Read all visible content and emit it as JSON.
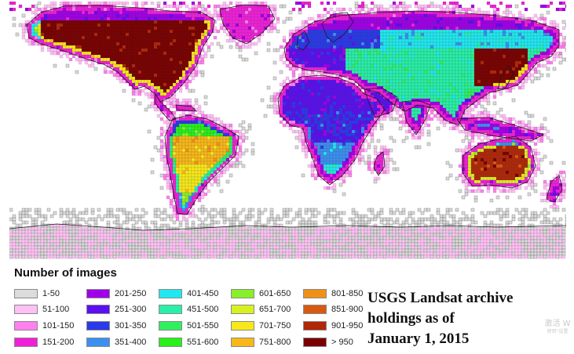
{
  "map": {
    "tile_colors": {
      "ocean": "#ffffff",
      "coast_line": "#1a1a1a",
      "tile_outline": "#6a6a6a"
    }
  },
  "legend": {
    "title": "Number of images",
    "items": [
      {
        "label": "1-50",
        "color": "#dcdcdc"
      },
      {
        "label": "51-100",
        "color": "#ffc0f5"
      },
      {
        "label": "101-150",
        "color": "#ff80ee"
      },
      {
        "label": "151-200",
        "color": "#f020d8"
      },
      {
        "label": "201-250",
        "color": "#a000e8"
      },
      {
        "label": "251-300",
        "color": "#5a10f0"
      },
      {
        "label": "301-350",
        "color": "#2a3ae8"
      },
      {
        "label": "351-400",
        "color": "#3a90f0"
      },
      {
        "label": "401-450",
        "color": "#20e8f0"
      },
      {
        "label": "451-500",
        "color": "#28f0a8"
      },
      {
        "label": "501-550",
        "color": "#30f060"
      },
      {
        "label": "551-600",
        "color": "#28f018"
      },
      {
        "label": "601-650",
        "color": "#88f028"
      },
      {
        "label": "651-700",
        "color": "#d8f020"
      },
      {
        "label": "701-750",
        "color": "#f8e818"
      },
      {
        "label": "751-800",
        "color": "#f8b818"
      },
      {
        "label": "801-850",
        "color": "#f09018"
      },
      {
        "label": "851-900",
        "color": "#d85a10"
      },
      {
        "label": "901-950",
        "color": "#b02808"
      },
      {
        "label": "> 950",
        "color": "#7a0000"
      }
    ]
  },
  "caption": {
    "line1": "USGS Landsat archive",
    "line2": "holdings as of",
    "line3": "January 1, 2015"
  },
  "watermark": {
    "line1": "激活 W",
    "line2": "转到\"设置"
  }
}
